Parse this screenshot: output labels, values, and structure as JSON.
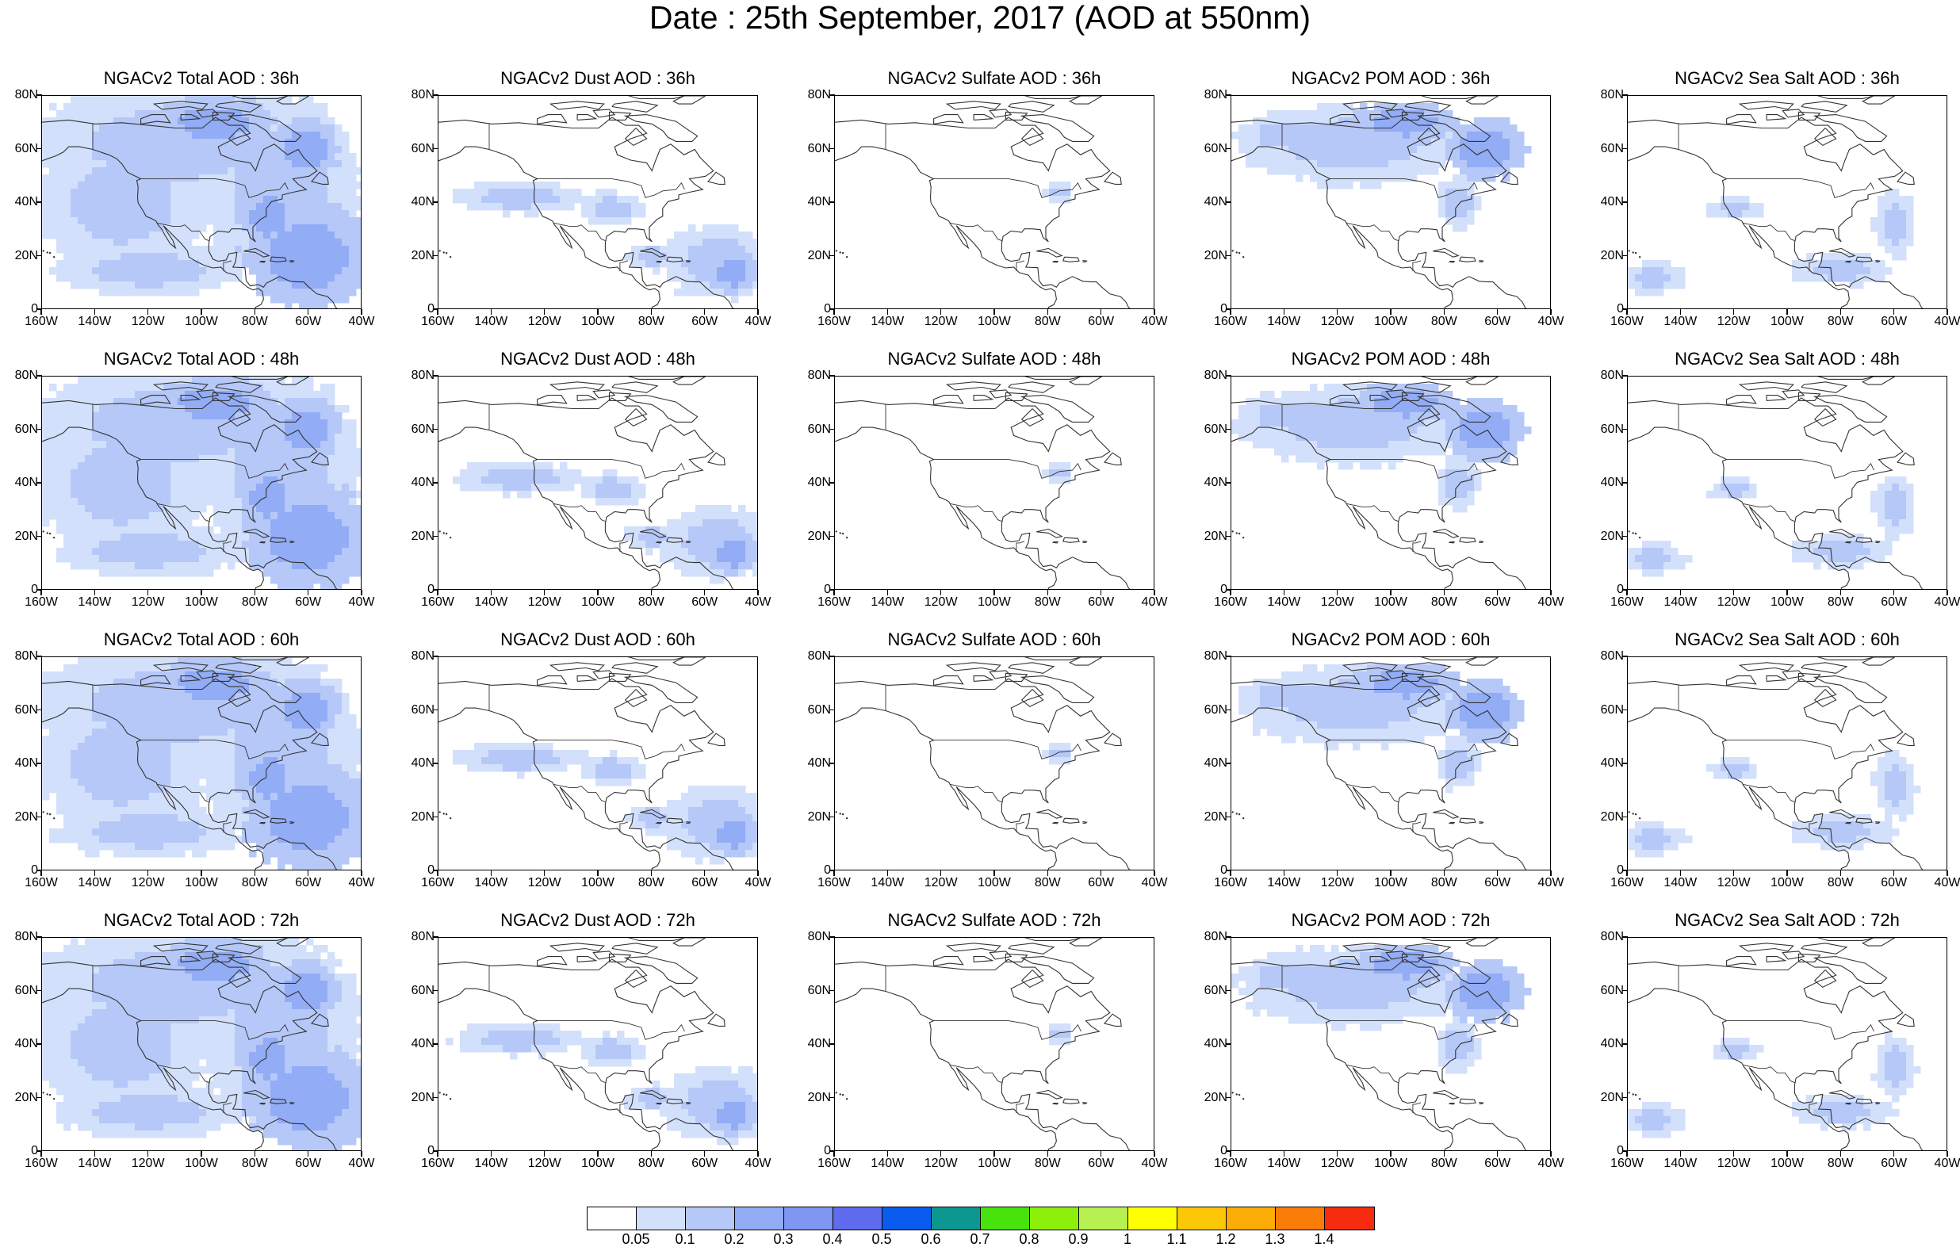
{
  "title": "Date : 25th September, 2017 (AOD at 550nm)",
  "map": {
    "lon_ticks": [
      "160W",
      "140W",
      "120W",
      "100W",
      "80W",
      "60W",
      "40W"
    ],
    "lon_values": [
      -160,
      -140,
      -120,
      -100,
      -80,
      -60,
      -40
    ],
    "lat_ticks": [
      "0",
      "20N",
      "40N",
      "60N",
      "80N"
    ],
    "lat_values": [
      0,
      20,
      40,
      60,
      80
    ],
    "lon_range": [
      -160,
      -40
    ],
    "lat_range": [
      0,
      80
    ]
  },
  "panels": [
    [
      {
        "title": "NGACv2 Total AOD : 36h",
        "type": "total"
      },
      {
        "title": "NGACv2 Dust AOD : 36h",
        "type": "dust"
      },
      {
        "title": "NGACv2 Sulfate AOD : 36h",
        "type": "sulfate"
      },
      {
        "title": "NGACv2 POM AOD : 36h",
        "type": "pom"
      },
      {
        "title": "NGACv2 Sea Salt AOD : 36h",
        "type": "seasalt"
      }
    ],
    [
      {
        "title": "NGACv2 Total AOD : 48h",
        "type": "total"
      },
      {
        "title": "NGACv2 Dust AOD : 48h",
        "type": "dust"
      },
      {
        "title": "NGACv2 Sulfate AOD : 48h",
        "type": "sulfate"
      },
      {
        "title": "NGACv2 POM AOD : 48h",
        "type": "pom"
      },
      {
        "title": "NGACv2 Sea Salt AOD : 48h",
        "type": "seasalt"
      }
    ],
    [
      {
        "title": "NGACv2 Total AOD : 60h",
        "type": "total"
      },
      {
        "title": "NGACv2 Dust AOD : 60h",
        "type": "dust"
      },
      {
        "title": "NGACv2 Sulfate AOD : 60h",
        "type": "sulfate"
      },
      {
        "title": "NGACv2 POM AOD : 60h",
        "type": "pom"
      },
      {
        "title": "NGACv2 Sea Salt AOD : 60h",
        "type": "seasalt"
      }
    ],
    [
      {
        "title": "NGACv2 Total AOD : 72h",
        "type": "total"
      },
      {
        "title": "NGACv2 Dust AOD : 72h",
        "type": "dust"
      },
      {
        "title": "NGACv2 Sulfate AOD : 72h",
        "type": "sulfate"
      },
      {
        "title": "NGACv2 POM AOD : 72h",
        "type": "pom"
      },
      {
        "title": "NGACv2 Sea Salt  AOD : 72h",
        "type": "seasalt"
      }
    ]
  ],
  "colorbar": {
    "colors": [
      "#ffffff",
      "#d3e0fb",
      "#b5c8f8",
      "#92acf6",
      "#7f96f2",
      "#5f6cef",
      "#0a5cf0",
      "#0c9790",
      "#46e30c",
      "#8df00a",
      "#b7f14f",
      "#ffff00",
      "#fcc707",
      "#fbac05",
      "#f97c07",
      "#f72b10"
    ],
    "labels": [
      "0.05",
      "0.1",
      "0.2",
      "0.3",
      "0.4",
      "0.5",
      "0.6",
      "0.7",
      "0.8",
      "0.9",
      "1",
      "1.1",
      "1.2",
      "1.3",
      "1.4"
    ]
  }
}
